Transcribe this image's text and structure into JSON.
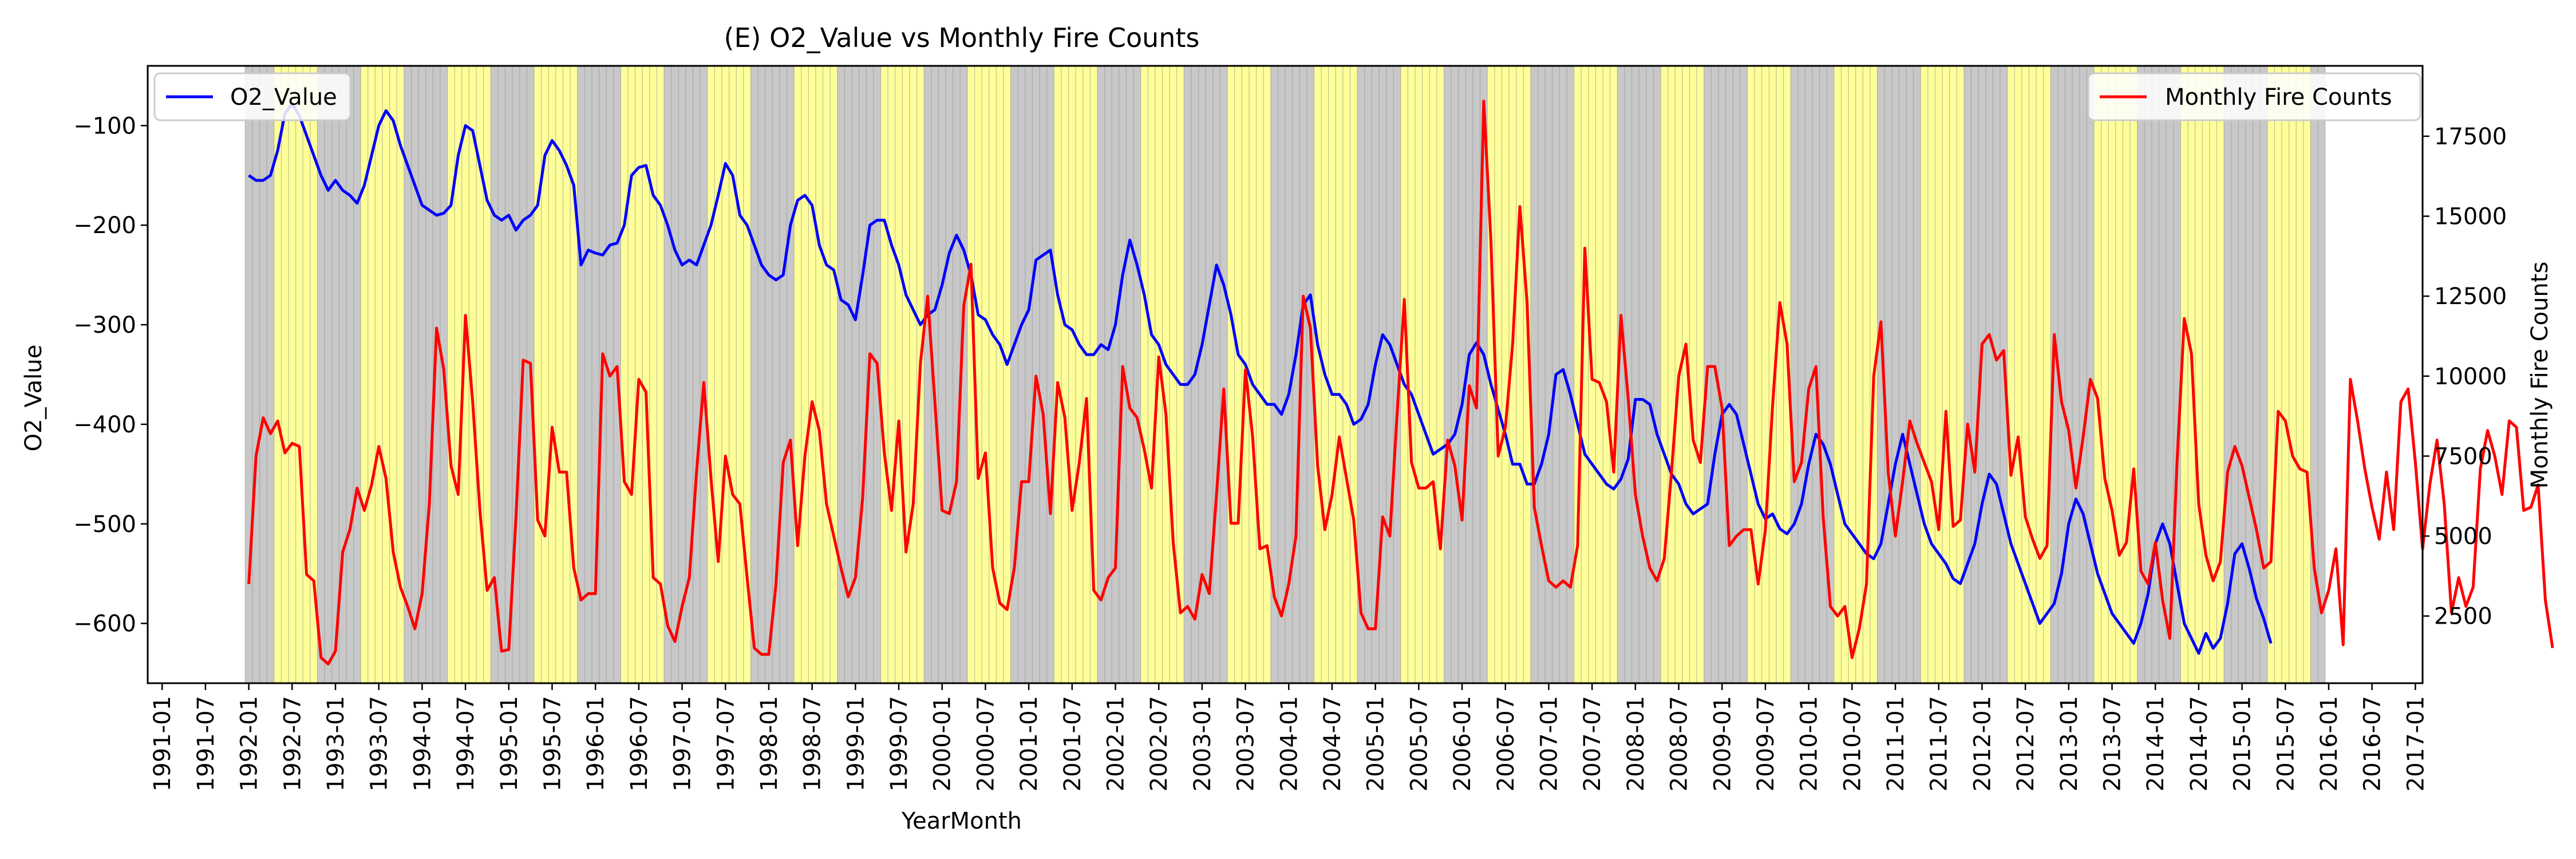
{
  "chart_data": {
    "type": "line",
    "title": "(E) O2_Value vs Monthly Fire Counts",
    "xlabel": "YearMonth",
    "ylabel_left": "O2_Value",
    "ylabel_right": "Monthly Fire Counts",
    "xlim": [
      "1990-11",
      "2017-02"
    ],
    "ylim_left": [
      -660,
      -40
    ],
    "ylim_right": [
      400,
      19700
    ],
    "x_ticks": [
      "1991-01",
      "1991-07",
      "1992-01",
      "1992-07",
      "1993-01",
      "1993-07",
      "1994-01",
      "1994-07",
      "1995-01",
      "1995-07",
      "1996-01",
      "1996-07",
      "1997-01",
      "1997-07",
      "1998-01",
      "1998-07",
      "1999-01",
      "1999-07",
      "2000-01",
      "2000-07",
      "2001-01",
      "2001-07",
      "2002-01",
      "2002-07",
      "2003-01",
      "2003-07",
      "2004-01",
      "2004-07",
      "2005-01",
      "2005-07",
      "2006-01",
      "2006-07",
      "2007-01",
      "2007-07",
      "2008-01",
      "2008-07",
      "2009-01",
      "2009-07",
      "2010-01",
      "2010-07",
      "2011-01",
      "2011-07",
      "2012-01",
      "2012-07",
      "2013-01",
      "2013-07",
      "2014-01",
      "2014-07",
      "2015-01",
      "2015-07",
      "2016-01",
      "2016-07",
      "2017-01"
    ],
    "y_ticks_left": [
      -100,
      -200,
      -300,
      -400,
      -500,
      -600
    ],
    "y_ticks_right": [
      2500,
      5000,
      7500,
      10000,
      12500,
      15000,
      17500
    ],
    "background_bands": {
      "description": "alternating half-year shading from 1992-01 to 2015-12",
      "colors": {
        "gray": "#c8c8c8",
        "yellow": "#ffff9a"
      },
      "pattern": "gray for Jan–Apr, yellow for May–Oct, gray for Nov–Dec",
      "start": "1992-01",
      "end": "2015-12"
    },
    "grid": false,
    "series": [
      {
        "name": "O2_Value",
        "axis": "left",
        "color": "#0000ff",
        "legend_position": "upper left",
        "start": "1992-01",
        "values": [
          -150,
          -155,
          -155,
          -150,
          -125,
          -88,
          -78,
          -90,
          -110,
          -130,
          -150,
          -165,
          -155,
          -165,
          -170,
          -178,
          -160,
          -130,
          -100,
          -85,
          -95,
          -120,
          -140,
          -160,
          -180,
          -185,
          -190,
          -188,
          -180,
          -130,
          -100,
          -105,
          -140,
          -175,
          -190,
          -195,
          -190,
          -205,
          -195,
          -190,
          -180,
          -130,
          -115,
          -125,
          -140,
          -160,
          -240,
          -225,
          -228,
          -230,
          -220,
          -218,
          -200,
          -150,
          -142,
          -140,
          -170,
          -180,
          -200,
          -225,
          -240,
          -235,
          -240,
          -220,
          -200,
          -170,
          -138,
          -150,
          -190,
          -200,
          -220,
          -240,
          -250,
          -255,
          -250,
          -200,
          -175,
          -170,
          -180,
          -220,
          -240,
          -245,
          -275,
          -280,
          -295,
          -250,
          -200,
          -195,
          -195,
          -220,
          -240,
          -270,
          -285,
          -300,
          -290,
          -285,
          -260,
          -228,
          -210,
          -225,
          -250,
          -290,
          -295,
          -310,
          -320,
          -340,
          -320,
          -300,
          -285,
          -235,
          -230,
          -225,
          -270,
          -300,
          -305,
          -320,
          -330,
          -330,
          -320,
          -325,
          -300,
          -250,
          -215,
          -240,
          -270,
          -310,
          -320,
          -340,
          -350,
          -360,
          -360,
          -350,
          -320,
          -280,
          -240,
          -260,
          -290,
          -330,
          -340,
          -360,
          -370,
          -380,
          -380,
          -390,
          -370,
          -330,
          -280,
          -270,
          -320,
          -350,
          -370,
          -370,
          -380,
          -400,
          -395,
          -380,
          -340,
          -310,
          -320,
          -340,
          -360,
          -370,
          -390,
          -410,
          -430,
          -425,
          -420,
          -410,
          -380,
          -330,
          -318,
          -330,
          -360,
          -385,
          -410,
          -440,
          -440,
          -460,
          -460,
          -440,
          -410,
          -350,
          -345,
          -370,
          -400,
          -430,
          -440,
          -450,
          -460,
          -465,
          -455,
          -435,
          -375,
          -375,
          -380,
          -410,
          -430,
          -450,
          -460,
          -480,
          -490,
          -485,
          -480,
          -430,
          -390,
          -380,
          -390,
          -420,
          -450,
          -480,
          -495,
          -490,
          -505,
          -510,
          -500,
          -480,
          -440,
          -410,
          -420,
          -440,
          -470,
          -500,
          -510,
          -520,
          -530,
          -535,
          -520,
          -480,
          -440,
          -410,
          -440,
          -470,
          -500,
          -520,
          -530,
          -540,
          -555,
          -560,
          -540,
          -520,
          -480,
          -450,
          -460,
          -490,
          -520,
          -540,
          -560,
          -580,
          -600,
          -590,
          -580,
          -550,
          -500,
          -475,
          -490,
          -520,
          -550,
          -570,
          -590,
          -600,
          -610,
          -620,
          -600,
          -570,
          -520,
          -500,
          -520,
          -560,
          -600,
          -615,
          -630,
          -610,
          -625,
          -615,
          -580,
          -530,
          -520,
          -545,
          -575,
          -595,
          -620
        ]
      },
      {
        "name": "Monthly Fire Counts",
        "axis": "right",
        "color": "#ff0000",
        "legend_position": "upper right",
        "start": "1992-01",
        "values": [
          3500,
          7500,
          8700,
          8200,
          8600,
          7600,
          7900,
          7800,
          3800,
          3600,
          1200,
          1000,
          1400,
          4500,
          5200,
          6500,
          5800,
          6600,
          7800,
          6800,
          4500,
          3400,
          2800,
          2100,
          3200,
          6000,
          11500,
          10200,
          7200,
          6300,
          11900,
          9200,
          5800,
          3300,
          3700,
          1400,
          1450,
          5600,
          10500,
          10400,
          5500,
          5000,
          8400,
          7000,
          7000,
          4000,
          3000,
          3200,
          3200,
          10700,
          10000,
          10300,
          6700,
          6300,
          9900,
          9500,
          3700,
          3500,
          2200,
          1700,
          2800,
          3700,
          7000,
          9800,
          6800,
          4200,
          7500,
          6300,
          6000,
          3700,
          1500,
          1300,
          1300,
          3500,
          7300,
          8000,
          4700,
          7500,
          9200,
          8300,
          6000,
          5000,
          4000,
          3100,
          3700,
          6200,
          10700,
          10400,
          7600,
          5800,
          8600,
          4500,
          6000,
          10400,
          12500,
          9200,
          5800,
          5700,
          6700,
          12200,
          13500,
          6800,
          7600,
          4000,
          2900,
          2700,
          4000,
          6700,
          6700,
          10000,
          8800,
          5700,
          9800,
          8700,
          5800,
          7300,
          9300,
          3300,
          3000,
          3700,
          4000,
          10300,
          9000,
          8700,
          7700,
          6500,
          10600,
          8800,
          4800,
          2600,
          2800,
          2400,
          3800,
          3200,
          6300,
          9600,
          5400,
          5400,
          10200,
          8100,
          4600,
          4700,
          3100,
          2500,
          3500,
          5000,
          12500,
          11500,
          7200,
          5200,
          6300,
          8100,
          6800,
          5500,
          2600,
          2100,
          2100,
          5600,
          5000,
          8800,
          12400,
          7300,
          6500,
          6500,
          6700,
          4600,
          8000,
          7200,
          5500,
          9700,
          9000,
          18600,
          14200,
          7500,
          8400,
          11000,
          15300,
          12300,
          5900,
          4700,
          3600,
          3400,
          3600,
          3400,
          4700,
          14000,
          9900,
          9800,
          9200,
          7000,
          11900,
          9300,
          6300,
          5000,
          4000,
          3600,
          4300,
          7000,
          10000,
          11000,
          8000,
          7300,
          10300,
          10300,
          9000,
          4700,
          5000,
          5200,
          5200,
          3500,
          5200,
          9100,
          12300,
          11000,
          6700,
          7300,
          9600,
          10300,
          5600,
          2800,
          2500,
          2800,
          1200,
          2100,
          3500,
          10000,
          11700,
          7000,
          5000,
          6700,
          8600,
          7900,
          7300,
          6700,
          5200,
          8900,
          5300,
          5500,
          8500,
          7000,
          11000,
          11300,
          10500,
          10800,
          6900,
          8100,
          5600,
          4900,
          4300,
          4700,
          11300,
          9200,
          8300,
          6500,
          8100,
          9900,
          9300,
          6800,
          5800,
          4400,
          4800,
          7100,
          3900,
          3500,
          4800,
          3000,
          1800,
          7300,
          11800,
          10700,
          6000,
          4400,
          3600,
          4200,
          7000,
          7800,
          7200,
          6200,
          5200,
          4000,
          4200,
          8900,
          8600,
          7500,
          7100,
          7000,
          4000,
          2600,
          3300,
          4600,
          1600,
          9900,
          8600,
          7100,
          5900,
          4900,
          7000,
          5200,
          9200,
          9600,
          7300,
          4600,
          6600,
          8000,
          6000,
          2600,
          3700,
          2800,
          3400,
          7100,
          8300,
          7500,
          6300,
          8600,
          8400,
          5800,
          5900,
          6600,
          3000,
          1500
        ]
      }
    ]
  }
}
